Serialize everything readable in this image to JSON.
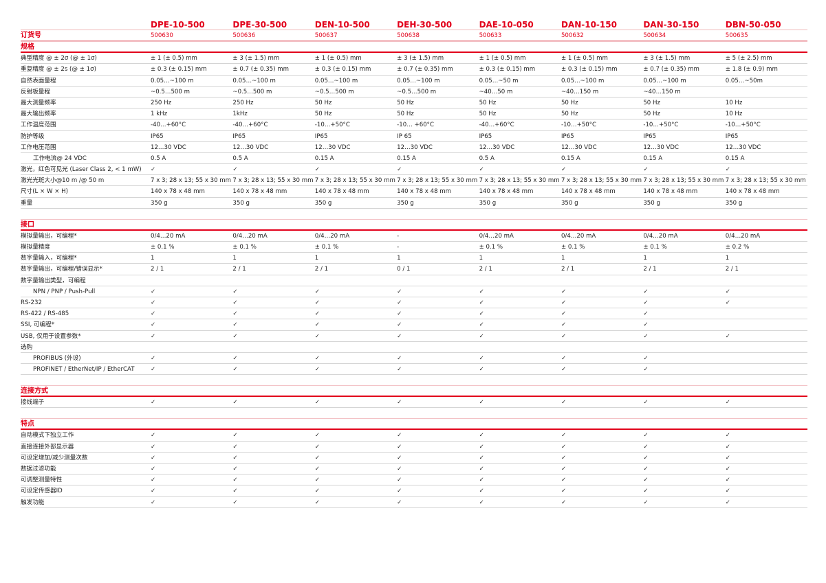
{
  "models": [
    "DPE-10-500",
    "DPE-30-500",
    "DEN-10-500",
    "DEH-30-500",
    "DAE-10-050",
    "DAN-10-150",
    "DAN-30-150",
    "DBN-50-050"
  ],
  "order": {
    "label": "订货号",
    "values": [
      "500630",
      "500636",
      "500637",
      "500638",
      "500633",
      "500632",
      "500634",
      "500635"
    ]
  },
  "accent_color": "#e2001a",
  "sections": [
    {
      "title": "规格",
      "rows": [
        {
          "label": "典型精度 @ ± 2σ (@ ± 1σ)",
          "values": [
            "± 1 (± 0.5) mm",
            "± 3 (± 1.5) mm",
            "± 1 (± 0.5) mm",
            "± 3 (± 1.5) mm",
            "± 1 (± 0.5) mm",
            "± 1 (± 0.5) mm",
            "± 3 (± 1.5) mm",
            "± 5 (± 2.5) mm"
          ]
        },
        {
          "label": "重复精度 @ ± 2s (@ ± 1σ)",
          "values": [
            "± 0.3 (± 0.15) mm",
            "± 0.7 (± 0.35) mm",
            "± 0.3 (± 0.15) mm",
            "± 0.7 (± 0.35) mm",
            "± 0.3 (± 0.15) mm",
            "± 0.3 (± 0.15) mm",
            "± 0.7 (± 0.35) mm",
            "± 1.8 (± 0.9) mm"
          ]
        },
        {
          "label": "自然表面量程",
          "values": [
            "0.05…~100 m",
            "0.05…~100 m",
            "0.05…~100 m",
            "0.05…~100 m",
            "0.05…~50 m",
            "0.05…~100 m",
            "0.05…~100 m",
            "0.05…~50m"
          ]
        },
        {
          "label": "反射板量程",
          "values": [
            " ~0.5…500 m",
            " ~0.5…500 m",
            " ~0.5…500 m",
            " ~0.5…500 m",
            "~40…50 m",
            "~40…150 m",
            "~40…150 m",
            ""
          ]
        },
        {
          "label": "最大测量频率",
          "values": [
            "250 Hz",
            "250 Hz",
            "50 Hz",
            "50 Hz",
            "50 Hz",
            "50 Hz",
            "50 Hz",
            "10 Hz"
          ]
        },
        {
          "label": "最大输出频率",
          "values": [
            "1 kHz",
            "1kHz",
            "50 Hz",
            "50 Hz",
            "50 Hz",
            "50 Hz",
            "50 Hz",
            "10 Hz"
          ]
        },
        {
          "label": "工作温度范围",
          "values": [
            "-40…+60°C",
            "-40…+60°C",
            "-10…+50°C",
            "-10… +60°C",
            "-40…+60°C",
            "-10…+50°C",
            "-10…+50°C",
            "-10…+50°C"
          ]
        },
        {
          "label": "防护等级",
          "values": [
            "IP65",
            "IP65",
            "IP65",
            "IP 65",
            "IP65",
            "IP65",
            "IP65",
            "IP65"
          ]
        },
        {
          "label": "工作电压范围",
          "values": [
            "12…30 VDC",
            "12…30 VDC",
            "12…30 VDC",
            "12…30 VDC",
            "12…30 VDC",
            "12…30 VDC",
            "12…30 VDC",
            "12…30 VDC"
          ]
        },
        {
          "label": "工作电流@ 24 VDC",
          "indent": true,
          "values": [
            "0.5 A",
            "0.5 A",
            "0.15 A",
            "0.15 A",
            "0.5 A",
            "0.15 A",
            "0.15 A",
            "0.15 A"
          ]
        },
        {
          "label": "激光，红色可见光 (Laser Class 2, < 1 mW)",
          "values": [
            "✓",
            "✓",
            "✓",
            "✓",
            "✓",
            "✓",
            "✓",
            "✓"
          ]
        },
        {
          "label": "激光光斑大小@10 m /@ 50 m",
          "values": [
            "7 x 3; 28 x 13; 55 x 30 mm",
            "7 x 3; 28 x 13; 55 x 30 mm",
            "7 x 3; 28 x 13; 55 x 30 mm",
            "7 x 3; 28 x 13; 55 x 30 mm",
            "7 x 3; 28 x 13; 55 x 30 mm",
            "7 x 3; 28 x 13; 55 x 30 mm",
            "7 x 3; 28 x 13; 55 x 30 mm",
            "7 x 3; 28 x 13; 55 x 30 mm"
          ]
        },
        {
          "label": "尺寸(L × W × H)",
          "values": [
            "140 x 78 x 48 mm",
            "140 x 78 x 48 mm",
            "140 x 78 x 48 mm",
            "140 x 78 x 48 mm",
            "140 x 78 x 48 mm",
            "140 x 78 x 48 mm",
            "140 x 78 x 48 mm",
            "140 x 78 x 48 mm"
          ]
        },
        {
          "label": "重量",
          "values": [
            "350 g",
            "350 g",
            "350 g",
            "350 g",
            "350 g",
            "350 g",
            "350 g",
            "350 g"
          ]
        }
      ]
    },
    {
      "title": "接口",
      "rows": [
        {
          "label": "模拟量输出，可编程*",
          "values": [
            "0/4…20 mA",
            "0/4…20 mA",
            "0/4…20 mA",
            "-",
            "0/4…20 mA",
            "0/4…20 mA",
            "0/4…20 mA",
            "0/4…20 mA"
          ]
        },
        {
          "label": "模拟量精度",
          "values": [
            "± 0.1 %",
            "± 0.1 %",
            "± 0.1 %",
            "-",
            "± 0.1 %",
            "± 0.1 %",
            "± 0.1 %",
            "± 0.2 %"
          ]
        },
        {
          "label": "数字量输入，可编程*",
          "values": [
            "1",
            "1",
            "1",
            "1",
            "1",
            "1",
            "1",
            "1"
          ]
        },
        {
          "label": "数字量输出，可编程/错误显示*",
          "values": [
            "2 / 1",
            "2 / 1",
            "2 / 1",
            "0 / 1",
            "2 / 1",
            "2 / 1",
            "2 / 1",
            "2 / 1"
          ]
        },
        {
          "label": "数字量输出类型，可编程",
          "values": [
            "",
            "",
            "",
            "",
            "",
            "",
            "",
            ""
          ]
        },
        {
          "label": "NPN / PNP / Push-Pull",
          "indent": true,
          "values": [
            "✓",
            "✓",
            "✓",
            "✓",
            "✓",
            "✓",
            "✓",
            "✓"
          ]
        },
        {
          "label": "RS-232",
          "values": [
            "✓",
            "✓",
            "✓",
            "✓",
            "✓",
            "✓",
            "✓",
            "✓"
          ]
        },
        {
          "label": "RS-422 / RS-485",
          "values": [
            "✓",
            "✓",
            "✓",
            "✓",
            "✓",
            "✓",
            "✓",
            ""
          ]
        },
        {
          "label": "SSI, 可编程*",
          "values": [
            "✓",
            "✓",
            "✓",
            "✓",
            "✓",
            "✓",
            "✓",
            ""
          ]
        },
        {
          "label": "USB, 仅用于设置参数*",
          "values": [
            "✓",
            "✓",
            "✓",
            "✓",
            "✓",
            "✓",
            "✓",
            "✓"
          ]
        },
        {
          "label": "选购",
          "values": [
            "",
            "",
            "",
            "",
            "",
            "",
            "",
            ""
          ]
        },
        {
          "label": "PROFIBUS (外设)",
          "indent": true,
          "values": [
            "✓",
            "✓",
            "✓",
            "✓",
            "✓",
            "✓",
            "✓",
            ""
          ]
        },
        {
          "label": "PROFINET / EtherNet/IP / EtherCAT",
          "indent": true,
          "values": [
            "✓",
            "✓",
            "✓",
            "✓",
            "✓",
            "✓",
            "✓",
            ""
          ]
        }
      ]
    },
    {
      "title": "连接方式",
      "rows": [
        {
          "label": "接线端子",
          "values": [
            "✓",
            "✓",
            "✓",
            "✓",
            "✓",
            "✓",
            "✓",
            "✓"
          ]
        }
      ]
    },
    {
      "title": "特点",
      "rows": [
        {
          "label": "自动模式下独立工作",
          "values": [
            "✓",
            "✓",
            "✓",
            "✓",
            "✓",
            "✓",
            "✓",
            "✓"
          ]
        },
        {
          "label": "直接连接外部显示器",
          "values": [
            "✓",
            "✓",
            "✓",
            "✓",
            "✓",
            "✓",
            "✓",
            "✓"
          ]
        },
        {
          "label": "可设定增加/减少测量次数",
          "values": [
            "✓",
            "✓",
            "✓",
            "✓",
            "✓",
            "✓",
            "✓",
            "✓"
          ]
        },
        {
          "label": "数据过滤功能",
          "values": [
            "✓",
            "✓",
            "✓",
            "✓",
            "✓",
            "✓",
            "✓",
            "✓"
          ]
        },
        {
          "label": "可调整测量特性",
          "values": [
            "✓",
            "✓",
            "✓",
            "✓",
            "✓",
            "✓",
            "✓",
            "✓"
          ]
        },
        {
          "label": "可设定传感器ID",
          "values": [
            "✓",
            "✓",
            "✓",
            "✓",
            "✓",
            "✓",
            "✓",
            "✓"
          ]
        },
        {
          "label": "触发功能",
          "values": [
            "✓",
            "✓",
            "✓",
            "✓",
            "✓",
            "✓",
            "✓",
            "✓"
          ]
        }
      ]
    }
  ]
}
